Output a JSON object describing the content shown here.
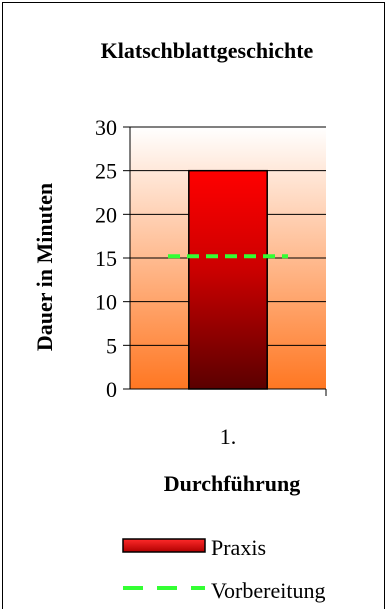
{
  "chart_data": {
    "type": "bar",
    "title": "Klatschblattgeschichte",
    "xlabel": "Durchführung",
    "ylabel": "Dauer in Minuten",
    "categories": [
      "1."
    ],
    "ylim": [
      0,
      30
    ],
    "yticks": [
      0,
      5,
      10,
      15,
      20,
      25,
      30
    ],
    "grid": true,
    "legend_position": "bottom",
    "series": [
      {
        "name": "Praxis",
        "type": "bar",
        "values": [
          25
        ],
        "color": "#ff0000"
      },
      {
        "name": "Vorbereitung",
        "type": "line",
        "style": "dashed",
        "values": [
          15.2
        ],
        "color": "#33ff33"
      }
    ],
    "plot_background": {
      "top": "#ffffff",
      "bottom": "#ff7722"
    }
  }
}
